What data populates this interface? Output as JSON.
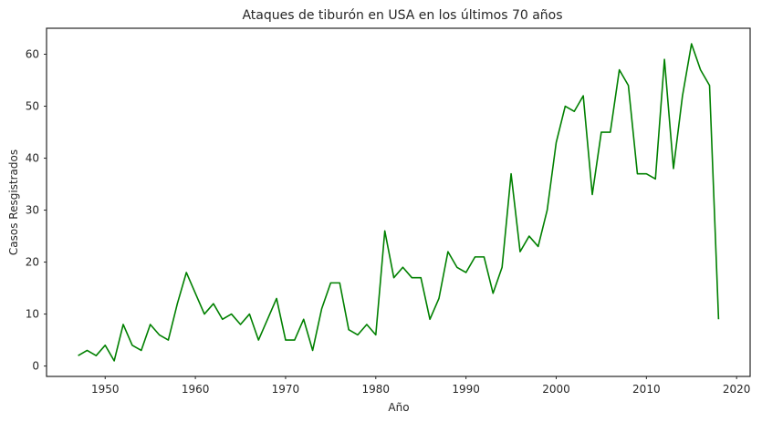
{
  "chart_data": {
    "type": "line",
    "title": "Ataques de tiburón en USA en los últimos 70 años",
    "xlabel": "Año",
    "ylabel": "Casos Resgistrados",
    "xlim": [
      1943.5,
      2021.5
    ],
    "ylim": [
      -2,
      65
    ],
    "xticks": [
      1950,
      1960,
      1970,
      1980,
      1990,
      2000,
      2010,
      2020
    ],
    "yticks": [
      0,
      10,
      20,
      30,
      40,
      50,
      60
    ],
    "grid": false,
    "line_color": "#008000",
    "series": [
      {
        "x": [
          1947,
          1948,
          1949,
          1950,
          1951,
          1952,
          1953,
          1954,
          1955,
          1956,
          1957,
          1958,
          1959,
          1960,
          1961,
          1962,
          1963,
          1964,
          1965,
          1966,
          1967,
          1968,
          1969,
          1970,
          1971,
          1972,
          1973,
          1974,
          1975,
          1976,
          1977,
          1978,
          1979,
          1980,
          1981,
          1982,
          1983,
          1984,
          1985,
          1986,
          1987,
          1988,
          1989,
          1990,
          1991,
          1992,
          1993,
          1994,
          1995,
          1996,
          1997,
          1998,
          1999,
          2000,
          2001,
          2002,
          2003,
          2004,
          2005,
          2006,
          2007,
          2008,
          2009,
          2010,
          2011,
          2012,
          2013,
          2014,
          2015,
          2016,
          2017,
          2018
        ],
        "values": [
          2,
          3,
          2,
          4,
          1,
          8,
          4,
          3,
          8,
          6,
          5,
          12,
          18,
          14,
          10,
          12,
          9,
          10,
          8,
          10,
          5,
          9,
          13,
          5,
          5,
          9,
          3,
          11,
          16,
          16,
          7,
          6,
          8,
          6,
          26,
          17,
          19,
          17,
          17,
          9,
          13,
          22,
          19,
          18,
          21,
          21,
          14,
          19,
          37,
          22,
          25,
          23,
          30,
          43,
          50,
          49,
          52,
          33,
          45,
          45,
          57,
          54,
          37,
          37,
          36,
          59,
          38,
          52,
          62,
          57,
          54,
          9
        ]
      }
    ]
  }
}
